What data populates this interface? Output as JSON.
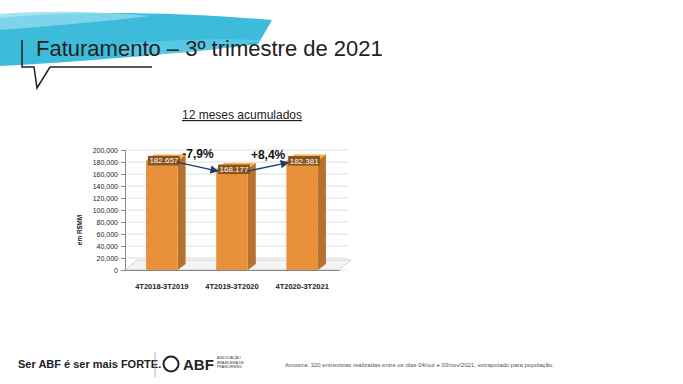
{
  "chart_data": {
    "type": "bar",
    "title": "Faturamento – 3º trimestre de 2021",
    "subtitle": "12 meses acumulados",
    "y_label": "em R$MM",
    "categories": [
      "4T2018-3T2019",
      "4T2019-3T2020",
      "4T2020-3T2021"
    ],
    "values": [
      182657,
      168177,
      182381
    ],
    "value_labels": [
      "182.657",
      "168.177",
      "182.381"
    ],
    "data_labels": true,
    "color": "#e8913a",
    "ylim": [
      0,
      200000
    ],
    "yticks": [
      0,
      {
        "value": 20000,
        "label": "20,000"
      },
      {
        "value": 40000,
        "label": "40,000"
      },
      {
        "value": 60000,
        "label": "60,000"
      },
      {
        "value": 80000,
        "label": "80,000"
      },
      {
        "value": 100000,
        "label": "100,000"
      },
      {
        "value": 120000,
        "label": "120,000"
      },
      {
        "value": 140000,
        "label": "140,000"
      },
      {
        "value": 160000,
        "label": "160,000"
      },
      {
        "value": 180000,
        "label": "180,000"
      },
      {
        "value": 200000,
        "label": "200,000"
      }
    ],
    "grid": true,
    "annotations": [
      "-7,9%",
      "+8,4%"
    ]
  },
  "page": {
    "brand": [
      "Ser ABF é ser mais",
      "FORTE."
    ],
    "logo": "ABF",
    "logo_caption": [
      "ASSOCIAÇÃO",
      "BRASILEIRA DE",
      "FRANCHISING"
    ],
    "note": "Amostra: 320 entrevistas realizadas entre os dias 04/out e 03/nov/2021, extrapolado para população."
  }
}
